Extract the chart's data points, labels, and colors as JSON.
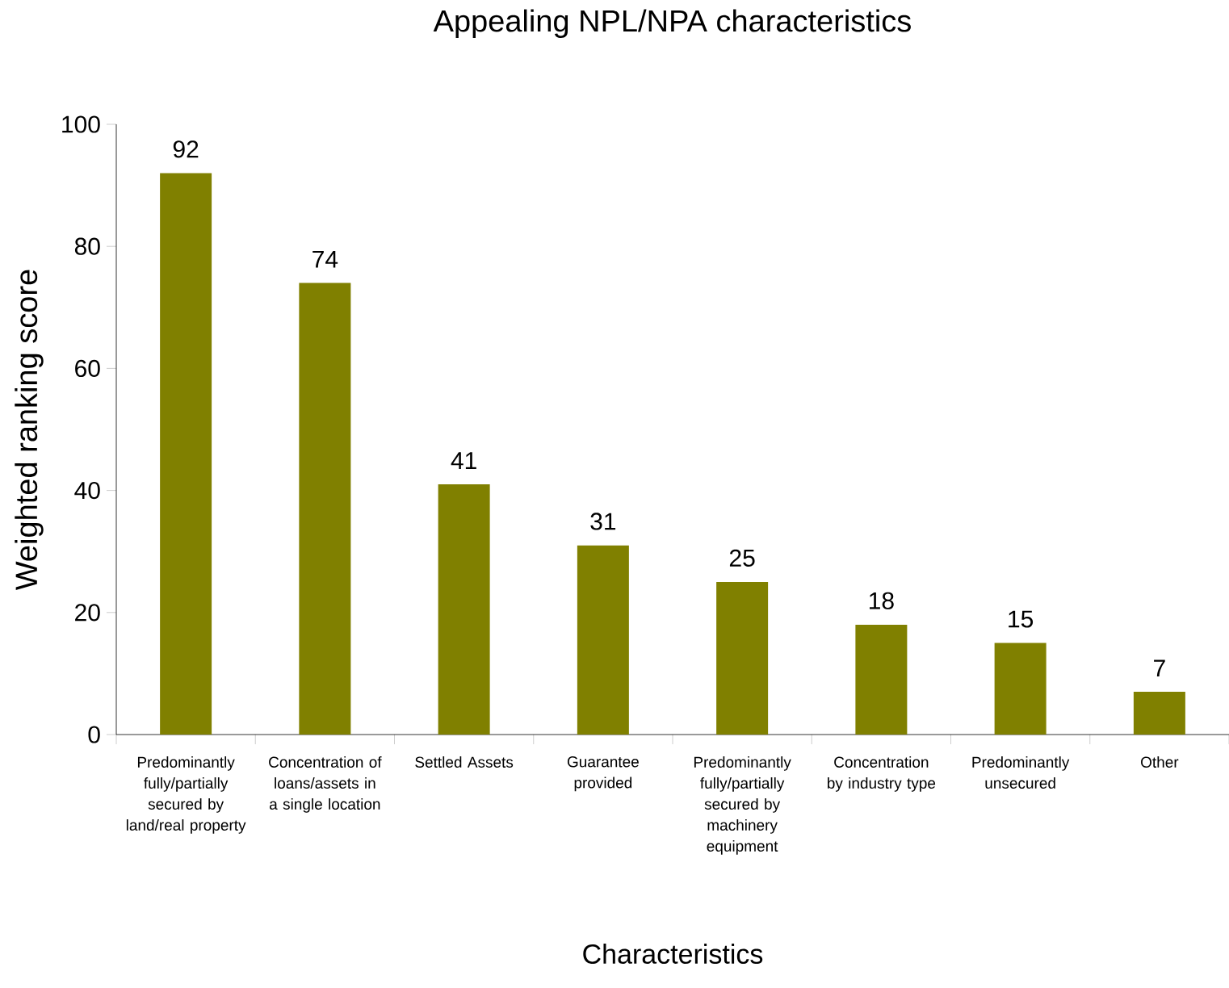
{
  "chart_data": {
    "type": "bar",
    "title": "Appealing NPL/NPA characteristics",
    "xlabel": "Characteristics",
    "ylabel": "Weighted ranking score",
    "categories": [
      "Predominantly fully/partially secured by land/real property",
      "Concentration of loans/assets in a single location",
      "Settled Assets",
      "Guarantee provided",
      "Predominantly fully/partially secured by machinery equipment",
      "Concentration by industry type",
      "Predominantly unsecured",
      "Other"
    ],
    "values": [
      92,
      74,
      41,
      31,
      25,
      18,
      15,
      7
    ],
    "color": "#808000",
    "ylim": [
      0,
      100
    ],
    "yticks": [
      0,
      20,
      40,
      60,
      80,
      100
    ],
    "data_labels": true
  }
}
